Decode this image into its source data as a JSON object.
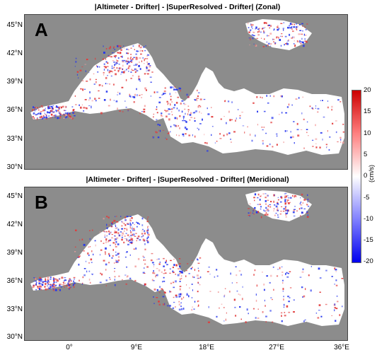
{
  "panel_a": {
    "title": "|Altimeter - Drifter|  - |SuperResolved - Drifter| (Zonal)",
    "letter": "A"
  },
  "panel_b": {
    "title": "|Altimeter - Drifter|  - |SuperResolved - Drifter| (Meridional)",
    "letter": "B"
  },
  "lat_labels_a": [
    "45°N",
    "42°N",
    "39°N",
    "36°N",
    "33°N",
    "30°N"
  ],
  "lat_labels_b": [
    "45°N",
    "42°N",
    "39°N",
    "36°N",
    "33°N",
    "30°N"
  ],
  "lon_labels": [
    "0°",
    "9°E",
    "18°E",
    "27°E",
    "36°E"
  ],
  "colorbar": {
    "ticks": [
      "20",
      "15",
      "10",
      "5",
      "0",
      "-5",
      "-10",
      "-15",
      "-20"
    ],
    "unit": "(cm/s)",
    "colors": {
      "high": "#cc0000",
      "mid": "#ffffff",
      "low": "#0000ee"
    }
  },
  "land_color": "#8c8c8c",
  "sea_color": "#ffffff"
}
